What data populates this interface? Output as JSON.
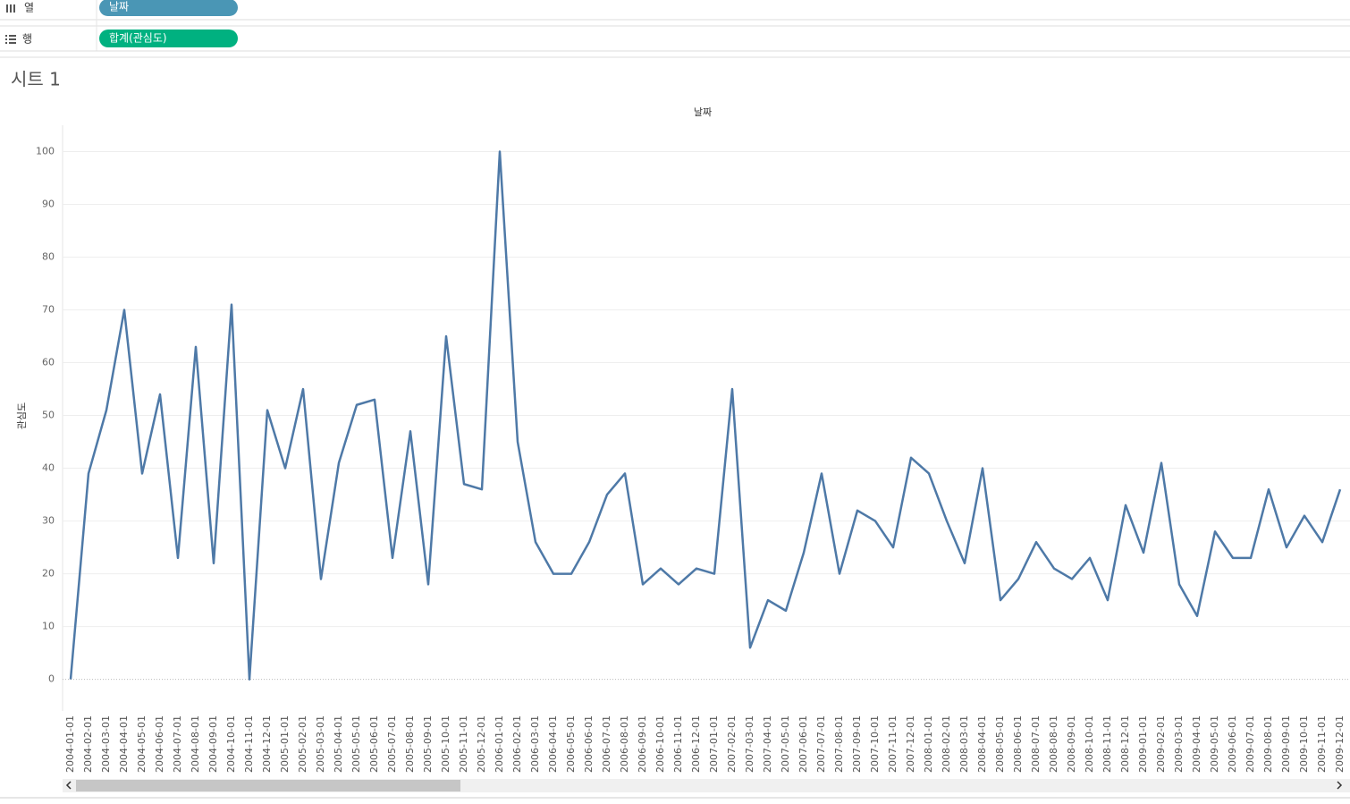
{
  "shelves": {
    "columns": {
      "label": "열",
      "pill": "날짜"
    },
    "rows": {
      "label": "행",
      "pill": "합계(관심도)"
    }
  },
  "sheet_title": "시트 1",
  "chart_data": {
    "type": "line",
    "x_title": "날짜",
    "y_title": "관심도",
    "categories": [
      "2004-01-01",
      "2004-02-01",
      "2004-03-01",
      "2004-04-01",
      "2004-05-01",
      "2004-06-01",
      "2004-07-01",
      "2004-08-01",
      "2004-09-01",
      "2004-10-01",
      "2004-11-01",
      "2004-12-01",
      "2005-01-01",
      "2005-02-01",
      "2005-03-01",
      "2005-04-01",
      "2005-05-01",
      "2005-06-01",
      "2005-07-01",
      "2005-08-01",
      "2005-09-01",
      "2005-10-01",
      "2005-11-01",
      "2005-12-01",
      "2006-01-01",
      "2006-02-01",
      "2006-03-01",
      "2006-04-01",
      "2006-05-01",
      "2006-06-01",
      "2006-07-01",
      "2006-08-01",
      "2006-09-01",
      "2006-10-01",
      "2006-11-01",
      "2006-12-01",
      "2007-01-01",
      "2007-02-01",
      "2007-03-01",
      "2007-04-01",
      "2007-05-01",
      "2007-06-01",
      "2007-07-01",
      "2007-08-01",
      "2007-09-01",
      "2007-10-01",
      "2007-11-01",
      "2007-12-01",
      "2008-01-01",
      "2008-02-01",
      "2008-03-01",
      "2008-04-01",
      "2008-05-01",
      "2008-06-01",
      "2008-07-01",
      "2008-08-01",
      "2008-09-01",
      "2008-10-01",
      "2008-11-01",
      "2008-12-01",
      "2009-01-01",
      "2009-02-01",
      "2009-03-01",
      "2009-04-01",
      "2009-05-01",
      "2009-06-01",
      "2009-07-01",
      "2009-08-01",
      "2009-09-01",
      "2009-10-01",
      "2009-11-01",
      "2009-12-01"
    ],
    "values": [
      0,
      39,
      51,
      70,
      39,
      54,
      23,
      63,
      22,
      71,
      0,
      51,
      40,
      55,
      19,
      41,
      52,
      53,
      23,
      47,
      18,
      65,
      37,
      36,
      100,
      45,
      26,
      20,
      20,
      26,
      35,
      39,
      18,
      21,
      18,
      21,
      20,
      55,
      6,
      15,
      13,
      24,
      39,
      20,
      32,
      30,
      25,
      42,
      39,
      30,
      22,
      40,
      15,
      19,
      26,
      21,
      19,
      23,
      15,
      33,
      24,
      41,
      18,
      12,
      28,
      23,
      23,
      36,
      25,
      31,
      26,
      36
    ],
    "color": "#4e79a7",
    "ylim": [
      -6,
      105
    ],
    "yticks": [
      0,
      10,
      20,
      30,
      40,
      50,
      60,
      70,
      80,
      90,
      100
    ],
    "grid": true
  }
}
